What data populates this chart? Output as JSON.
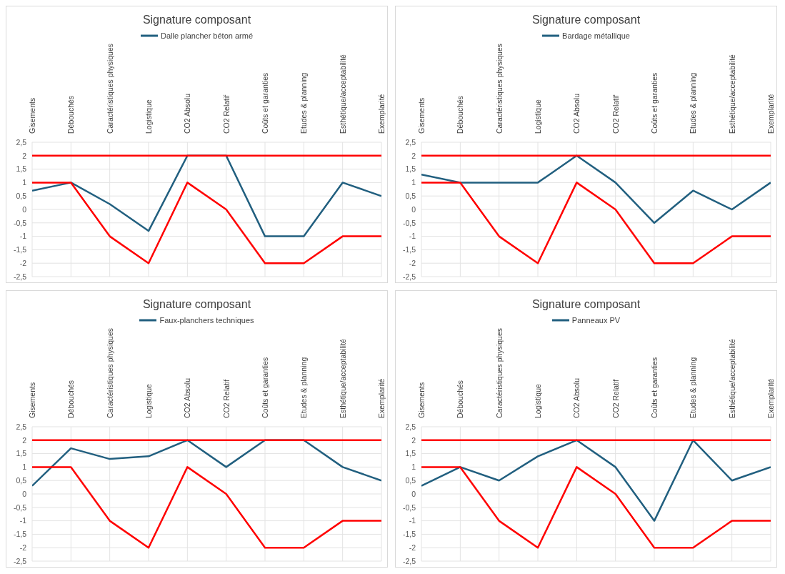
{
  "chart_data": [
    {
      "type": "line",
      "title": "Signature composant",
      "categories": [
        "Gisements",
        "Débouchés",
        "Caractéristiques physiques",
        "Logistique",
        "CO2 Absolu",
        "CO2 Relatif",
        "Coûts et garanties",
        "Etudes & planning",
        "Esthétique/acceptabilité",
        "Exemplarité"
      ],
      "series": [
        {
          "name": "Dalle plancher béton armé",
          "color": "#215f7f",
          "values": [
            0.7,
            1,
            0.2,
            -0.8,
            2,
            2,
            -1,
            -1,
            1,
            0.5
          ]
        },
        {
          "color": "#ff0000",
          "values": [
            2,
            2,
            2,
            2,
            2,
            2,
            2,
            2,
            2,
            2
          ]
        },
        {
          "color": "#ff0000",
          "values": [
            1,
            1,
            -1,
            -2,
            1,
            0,
            -2,
            -2,
            -1,
            -1
          ]
        }
      ],
      "ylim": [
        -2.5,
        2.5
      ],
      "yticks": [
        {
          "value": -2.5,
          "label": "-2,5"
        },
        -2,
        {
          "value": -1.5,
          "label": "-1,5"
        },
        -1,
        {
          "value": -0.5,
          "label": "-0,5"
        },
        0,
        {
          "value": 0.5,
          "label": "0,5"
        },
        1,
        {
          "value": 1.5,
          "label": "1,5"
        },
        2,
        {
          "value": 2.5,
          "label": "2,5"
        }
      ],
      "grid": true,
      "legend": "top",
      "marker": "none",
      "line_style": "solid"
    },
    {
      "type": "line",
      "title": "Signature composant",
      "categories": [
        "Gisements",
        "Débouchés",
        "Caractéristiques physiques",
        "Logistique",
        "CO2 Absolu",
        "CO2 Relatif",
        "Coûts et garanties",
        "Etudes & planning",
        "Esthétique/acceptabilité",
        "Exemplarité"
      ],
      "series": [
        {
          "name": "Bardage métallique",
          "color": "#215f7f",
          "values": [
            1.3,
            1,
            1,
            1,
            2,
            1,
            -0.5,
            0.7,
            0,
            1
          ]
        },
        {
          "color": "#ff0000",
          "values": [
            2,
            2,
            2,
            2,
            2,
            2,
            2,
            2,
            2,
            2
          ]
        },
        {
          "color": "#ff0000",
          "values": [
            1,
            1,
            -1,
            -2,
            1,
            0,
            -2,
            -2,
            -1,
            -1
          ]
        }
      ],
      "ylim": [
        -2.5,
        2.5
      ],
      "yticks": [
        {
          "value": -2.5,
          "label": "-2,5"
        },
        -2,
        {
          "value": -1.5,
          "label": "-1,5"
        },
        -1,
        {
          "value": -0.5,
          "label": "-0,5"
        },
        0,
        {
          "value": 0.5,
          "label": "0,5"
        },
        1,
        {
          "value": 1.5,
          "label": "1,5"
        },
        2,
        {
          "value": 2.5,
          "label": "2,5"
        }
      ],
      "grid": true,
      "legend": "top",
      "marker": "none",
      "line_style": "solid"
    },
    {
      "type": "line",
      "title": "Signature composant",
      "categories": [
        "Gisements",
        "Débouchés",
        "Caractéristiques physiques",
        "Logistique",
        "CO2 Absolu",
        "CO2 Relatif",
        "Coûts et garanties",
        "Etudes & planning",
        "Esthétique/acceptabilité",
        "Exemplarité"
      ],
      "series": [
        {
          "name": "Faux-planchers techniques",
          "color": "#215f7f",
          "values": [
            0.3,
            1.7,
            1.3,
            1.4,
            2,
            1,
            2,
            2,
            1,
            0.5
          ]
        },
        {
          "color": "#ff0000",
          "values": [
            2,
            2,
            2,
            2,
            2,
            2,
            2,
            2,
            2,
            2
          ]
        },
        {
          "color": "#ff0000",
          "values": [
            1,
            1,
            -1,
            -2,
            1,
            0,
            -2,
            -2,
            -1,
            -1
          ]
        }
      ],
      "ylim": [
        -2.5,
        2.5
      ],
      "yticks": [
        {
          "value": -2.5,
          "label": "-2,5"
        },
        -2,
        {
          "value": -1.5,
          "label": "-1,5"
        },
        -1,
        {
          "value": -0.5,
          "label": "-0,5"
        },
        0,
        {
          "value": 0.5,
          "label": "0,5"
        },
        1,
        {
          "value": 1.5,
          "label": "1,5"
        },
        2,
        {
          "value": 2.5,
          "label": "2,5"
        }
      ],
      "grid": true,
      "legend": "top",
      "marker": "none",
      "line_style": "solid"
    },
    {
      "type": "line",
      "title": "Signature composant",
      "categories": [
        "Gisements",
        "Débouchés",
        "Caractéristiques physiques",
        "Logistique",
        "CO2 Absolu",
        "CO2 Relatif",
        "Coûts et garanties",
        "Etudes & planning",
        "Esthétique/acceptabilité",
        "Exemplarité"
      ],
      "series": [
        {
          "name": "Panneaux PV",
          "color": "#215f7f",
          "values": [
            0.3,
            1,
            0.5,
            1.4,
            2,
            1,
            -1,
            2,
            0.5,
            1
          ]
        },
        {
          "color": "#ff0000",
          "values": [
            2,
            2,
            2,
            2,
            2,
            2,
            2,
            2,
            2,
            2
          ]
        },
        {
          "color": "#ff0000",
          "values": [
            1,
            1,
            -1,
            -2,
            1,
            0,
            -2,
            -2,
            -1,
            -1
          ]
        }
      ],
      "ylim": [
        -2.5,
        2.5
      ],
      "yticks": [
        {
          "value": -2.5,
          "label": "-2,5"
        },
        -2,
        {
          "value": -1.5,
          "label": "-1,5"
        },
        -1,
        {
          "value": -0.5,
          "label": "-0,5"
        },
        0,
        {
          "value": 0.5,
          "label": "0,5"
        },
        1,
        {
          "value": 1.5,
          "label": "1,5"
        },
        2,
        {
          "value": 2.5,
          "label": "2,5"
        }
      ],
      "grid": true,
      "legend": "top",
      "marker": "none",
      "line_style": "solid"
    }
  ]
}
